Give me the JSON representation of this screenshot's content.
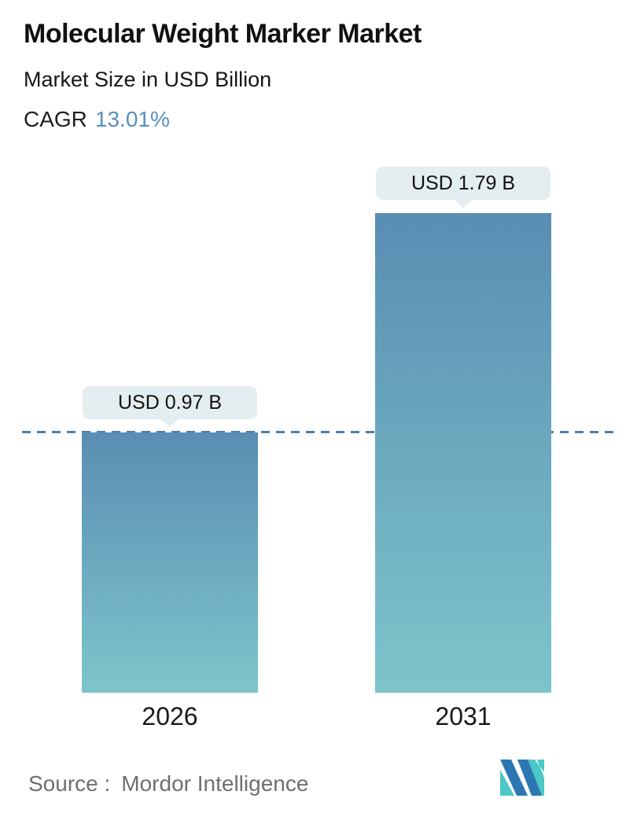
{
  "header": {
    "title": "Molecular Weight Marker Market",
    "subtitle": "Market Size in USD Billion",
    "cagr_label": "CAGR",
    "cagr_value": "13.01%"
  },
  "chart_data": {
    "type": "bar",
    "title": "Molecular Weight Marker Market",
    "subtitle": "Market Size in USD Billion",
    "unit": "USD Billion",
    "categories": [
      "2026",
      "2031"
    ],
    "values": [
      0.97,
      1.79
    ],
    "value_labels": [
      "USD 0.97 B",
      "USD 1.79 B"
    ],
    "cagr_percent": 13.01,
    "ylim": [
      0,
      1.79
    ],
    "grid": false,
    "legend": false,
    "annotations": [
      "horizontal dashed reference line at 0.97 (2026 level)"
    ]
  },
  "footer": {
    "source_label": "Source :",
    "source_value": "Mordor Intelligence",
    "logo": "mordor-intelligence-logo"
  },
  "colors": {
    "accent_blue": "#5590bd",
    "bar_gradient_top": "#5a8db3",
    "bar_gradient_bottom": "#7dc5ca",
    "dashed_line": "#4d7fa9",
    "callout_bg": "#e4edef",
    "text_dark": "#1c1c1c",
    "source_gray": "#6f6f6f",
    "logo_teal": "#4cc8c6",
    "logo_blue": "#2b77b3"
  }
}
